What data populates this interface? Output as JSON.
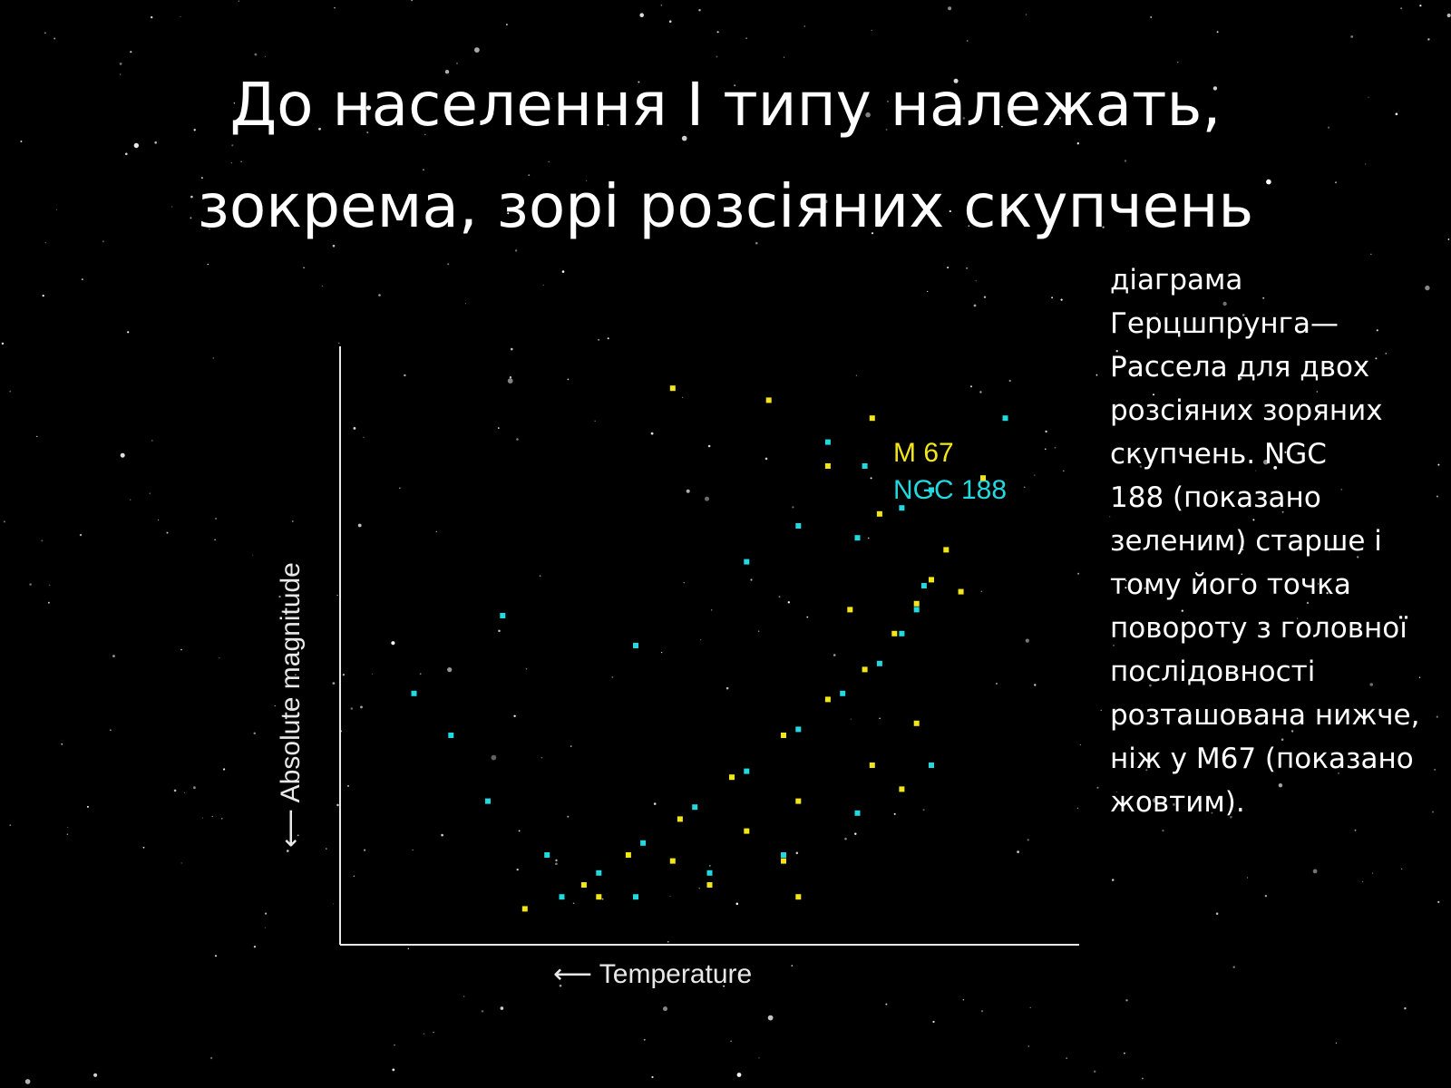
{
  "slide": {
    "title_lines": [
      "До населення I типу належать,",
      "зокрема, зорі розсіяних скупчень"
    ],
    "caption_lines": [
      "діаграма",
      "Герцшпрунга—",
      "Рассела для двох",
      "розсіяних зоряних",
      "скупчень. NGC",
      "188 (показано",
      "зеленим) старше і",
      "тому його точка",
      "повороту з головної",
      "послідовності",
      "розташована нижче,",
      "ніж у M67 (показано",
      "жовтим)."
    ]
  },
  "chart_data": {
    "type": "scatter",
    "title": "",
    "xlabel": "⟵ Temperature",
    "ylabel": "⟵ Absolute magnitude",
    "x_direction": "reversed",
    "y_direction": "reversed",
    "ticks": false,
    "grid": false,
    "legend_placement": "top-right",
    "series": [
      {
        "name": "M 67",
        "color": "#f2e61a",
        "points": [
          [
            0.82,
            0.34
          ],
          [
            0.8,
            0.39
          ],
          [
            0.78,
            0.43
          ],
          [
            0.75,
            0.48
          ],
          [
            0.71,
            0.54
          ],
          [
            0.66,
            0.59
          ],
          [
            0.6,
            0.65
          ],
          [
            0.53,
            0.72
          ],
          [
            0.46,
            0.79
          ],
          [
            0.39,
            0.85
          ],
          [
            0.33,
            0.9
          ],
          [
            0.78,
            0.63
          ],
          [
            0.72,
            0.7
          ],
          [
            0.62,
            0.76
          ],
          [
            0.55,
            0.81
          ],
          [
            0.45,
            0.86
          ],
          [
            0.35,
            0.92
          ],
          [
            0.25,
            0.94
          ],
          [
            0.76,
            0.74
          ],
          [
            0.6,
            0.86
          ],
          [
            0.5,
            0.9
          ],
          [
            0.62,
            0.92
          ],
          [
            0.84,
            0.41
          ],
          [
            0.69,
            0.44
          ],
          [
            0.87,
            0.22
          ],
          [
            0.72,
            0.12
          ],
          [
            0.66,
            0.2
          ],
          [
            0.73,
            0.28
          ],
          [
            0.58,
            0.09
          ],
          [
            0.45,
            0.07
          ]
        ]
      },
      {
        "name": "NGC 188",
        "color": "#23d8de",
        "points": [
          [
            0.79,
            0.4
          ],
          [
            0.78,
            0.44
          ],
          [
            0.76,
            0.48
          ],
          [
            0.73,
            0.53
          ],
          [
            0.68,
            0.58
          ],
          [
            0.62,
            0.64
          ],
          [
            0.55,
            0.71
          ],
          [
            0.48,
            0.77
          ],
          [
            0.41,
            0.83
          ],
          [
            0.35,
            0.88
          ],
          [
            0.3,
            0.92
          ],
          [
            0.7,
            0.32
          ],
          [
            0.76,
            0.27
          ],
          [
            0.71,
            0.2
          ],
          [
            0.66,
            0.16
          ],
          [
            0.8,
            0.24
          ],
          [
            0.62,
            0.3
          ],
          [
            0.55,
            0.36
          ],
          [
            0.8,
            0.7
          ],
          [
            0.7,
            0.78
          ],
          [
            0.6,
            0.85
          ],
          [
            0.5,
            0.88
          ],
          [
            0.4,
            0.92
          ],
          [
            0.28,
            0.85
          ],
          [
            0.2,
            0.76
          ],
          [
            0.15,
            0.65
          ],
          [
            0.1,
            0.58
          ],
          [
            0.9,
            0.12
          ],
          [
            0.4,
            0.5
          ],
          [
            0.22,
            0.45
          ]
        ]
      }
    ]
  },
  "colors": {
    "background": "#000000",
    "text": "#ffffff",
    "axis": "#e8e8e8",
    "m67": "#f2e61a",
    "ngc188": "#23d8de"
  }
}
